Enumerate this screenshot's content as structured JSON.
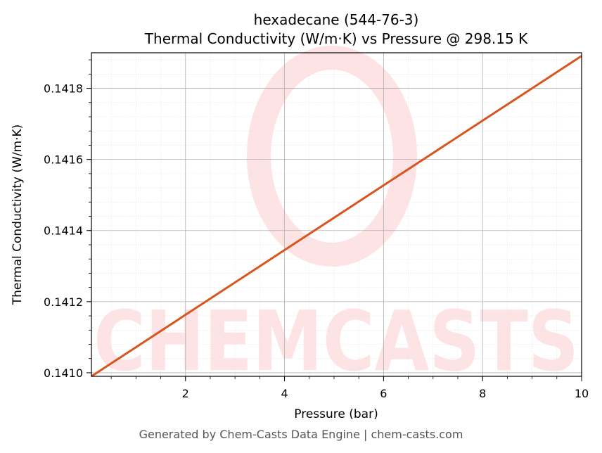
{
  "chart_data": {
    "type": "line",
    "title": "hexadecane (544-76-3)",
    "subtitle": "Thermal Conductivity (W/m·K) vs Pressure @ 298.15 K",
    "xlabel": "Pressure (bar)",
    "ylabel": "Thermal Conductivity (W/m·K)",
    "xlim": [
      0.1,
      10
    ],
    "ylim": [
      0.14099,
      0.1419
    ],
    "x_ticks": [
      2,
      4,
      6,
      8,
      10
    ],
    "x_tick_labels": [
      "2",
      "4",
      "6",
      "8",
      "10"
    ],
    "y_ticks": [
      0.141,
      0.1412,
      0.1414,
      0.1416,
      0.1418
    ],
    "y_tick_labels": [
      "0.1410",
      "0.1412",
      "0.1414",
      "0.1416",
      "0.1418"
    ],
    "grid": true,
    "series": [
      {
        "color": "#d9541e",
        "x": [
          0.1,
          2,
          4,
          6,
          8,
          10
        ],
        "y": [
          0.14099,
          0.141163,
          0.141345,
          0.141527,
          0.141709,
          0.141891
        ]
      }
    ]
  },
  "watermark": {
    "text": "CHEMCASTS",
    "color": "#fde3e3"
  },
  "footer": "Generated by Chem-Casts Data Engine | chem-casts.com"
}
